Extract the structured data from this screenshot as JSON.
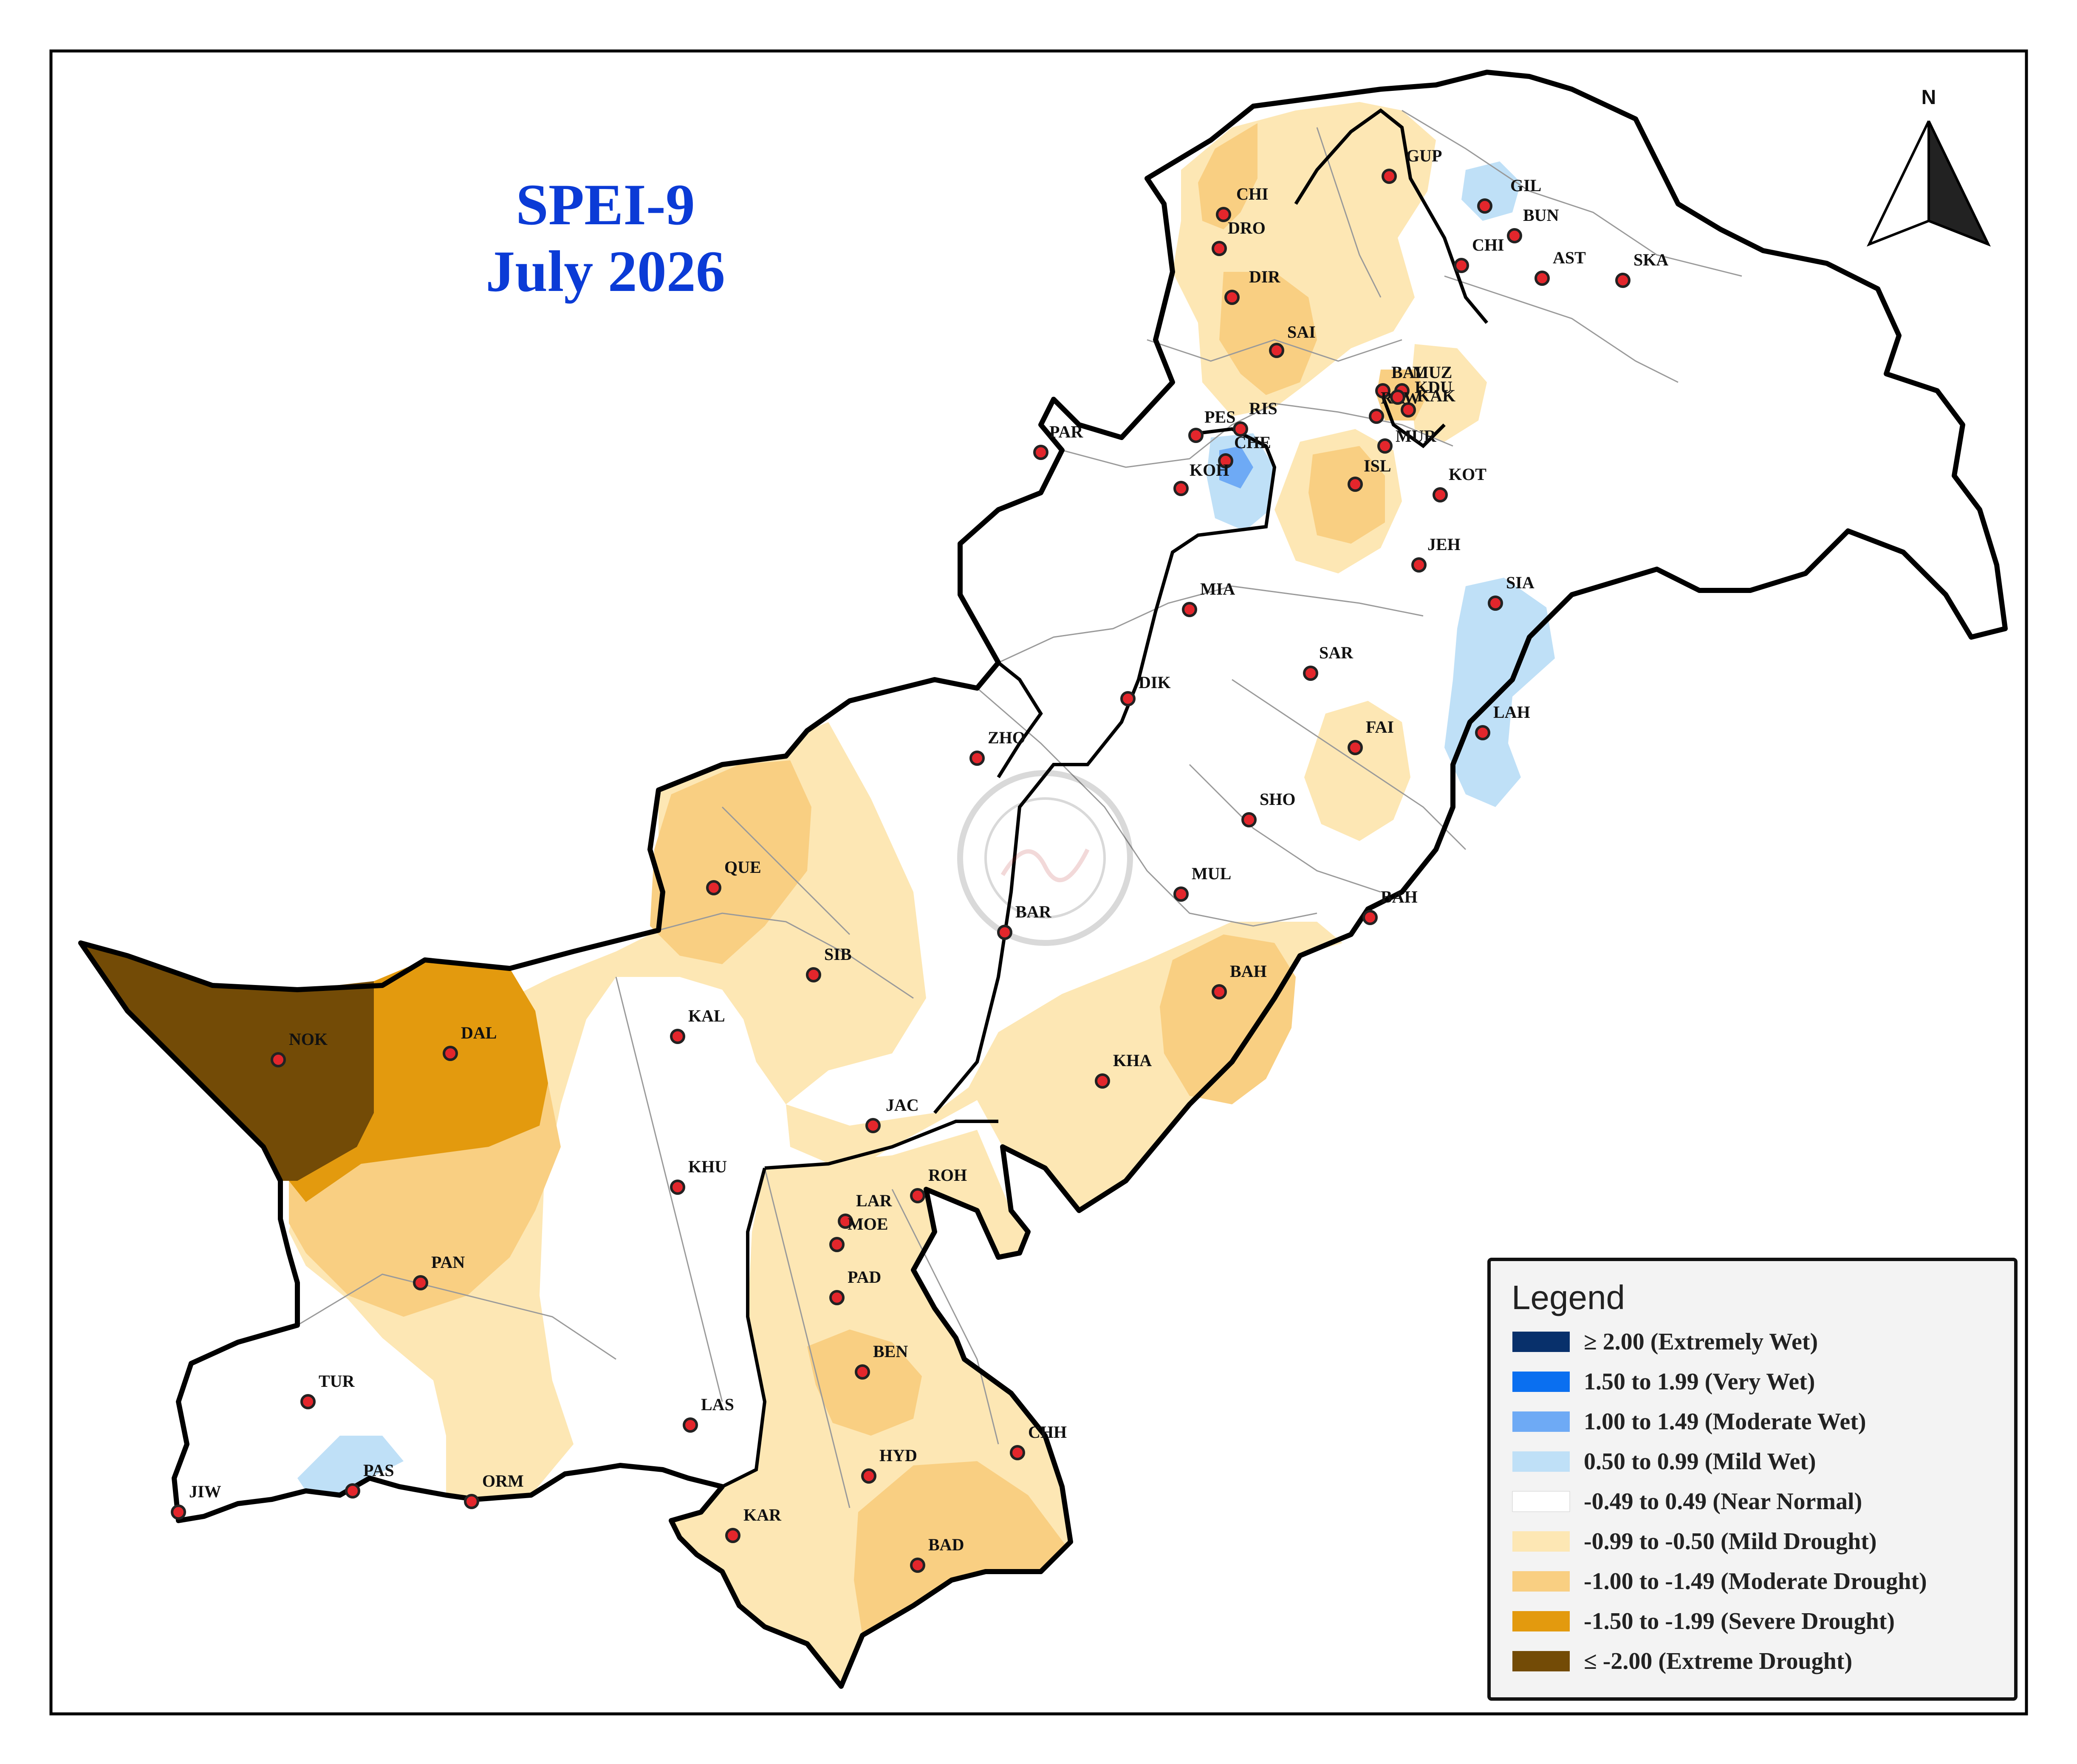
{
  "title": {
    "line1": "SPEI-9",
    "line2": "July 2026"
  },
  "north_arrow": {
    "label": "N",
    "icon": "north-arrow-icon"
  },
  "legend": {
    "title": "Legend",
    "items": [
      {
        "label": "≥ 2.00 (Extremely Wet)",
        "color": "#08306b"
      },
      {
        "label": "1.50 to 1.99 (Very Wet)",
        "color": "#0a6ff0"
      },
      {
        "label": "1.00 to 1.49 (Moderate Wet)",
        "color": "#6eaaf5"
      },
      {
        "label": "0.50 to 0.99 (Mild Wet)",
        "color": "#bfe0f7"
      },
      {
        "label": "-0.49 to 0.49 (Near Normal)",
        "color": "#ffffff"
      },
      {
        "label": "-0.99 to -0.50 (Mild Drought)",
        "color": "#fde7b4"
      },
      {
        "label": "-1.00 to -1.49 (Moderate Drought)",
        "color": "#f9cf82"
      },
      {
        "label": "-1.50 to -1.99 (Severe Drought)",
        "color": "#e39a0e"
      },
      {
        "label": "≤ -2.00 (Extreme Drought)",
        "color": "#734b06"
      }
    ]
  },
  "stations": [
    "CHI",
    "DRO",
    "DIR",
    "GUP",
    "GIL",
    "BUN",
    "CHI",
    "AST",
    "SKA",
    "SAI",
    "BAL",
    "MUZ",
    "KAK",
    "RAW",
    "KDU",
    "PES",
    "RIS",
    "CHE",
    "MUR",
    "PAR",
    "KOH",
    "ISL",
    "KOT",
    "JEH",
    "MIA",
    "SIA",
    "SAR",
    "DIK",
    "LAH",
    "FAI",
    "ZHO",
    "SHO",
    "QUE",
    "MUL",
    "BAH",
    "BAR",
    "SIB",
    "BAH",
    "KAL",
    "NOK",
    "DAL",
    "KHA",
    "JAC",
    "KHU",
    "ROH",
    "LAR",
    "MOE",
    "PAN",
    "PAD",
    "BEN",
    "TUR",
    "LAS",
    "CHH",
    "HYD",
    "PAS",
    "ORM",
    "JIW",
    "KAR",
    "BAD"
  ]
}
